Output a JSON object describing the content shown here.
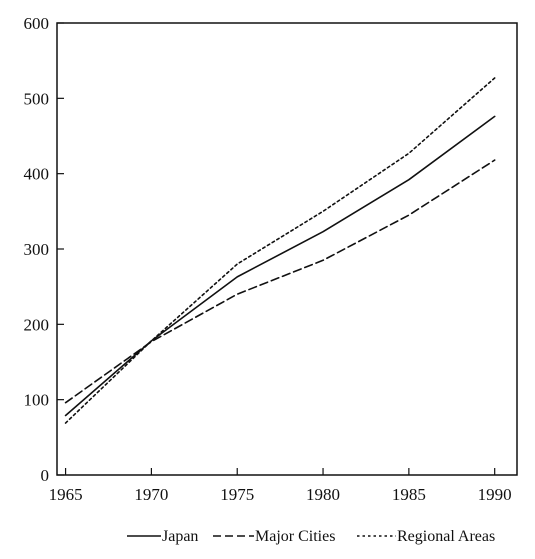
{
  "chart_data": {
    "type": "line",
    "title": "",
    "xlabel": "",
    "ylabel": "",
    "x": [
      1965,
      1970,
      1975,
      1980,
      1985,
      1990
    ],
    "xlim": [
      1964.5,
      1991.3
    ],
    "ylim": [
      0,
      600
    ],
    "xticks": [
      "1965",
      "1970",
      "1975",
      "1980",
      "1985",
      "1990"
    ],
    "yticks": [
      "0",
      "100",
      "200",
      "300",
      "400",
      "500",
      "600"
    ],
    "grid": false,
    "legend_position": "bottom-right",
    "series": [
      {
        "name": "Japan",
        "style": "solid",
        "color": "#111111",
        "values": [
          79,
          178,
          263,
          323,
          392,
          476
        ]
      },
      {
        "name": "Major Cities",
        "style": "dashed",
        "color": "#111111",
        "values": [
          96,
          177,
          240,
          285,
          345,
          418
        ]
      },
      {
        "name": "Regional Areas",
        "style": "dotted",
        "color": "#111111",
        "values": [
          69,
          178,
          280,
          350,
          427,
          527
        ]
      }
    ]
  }
}
